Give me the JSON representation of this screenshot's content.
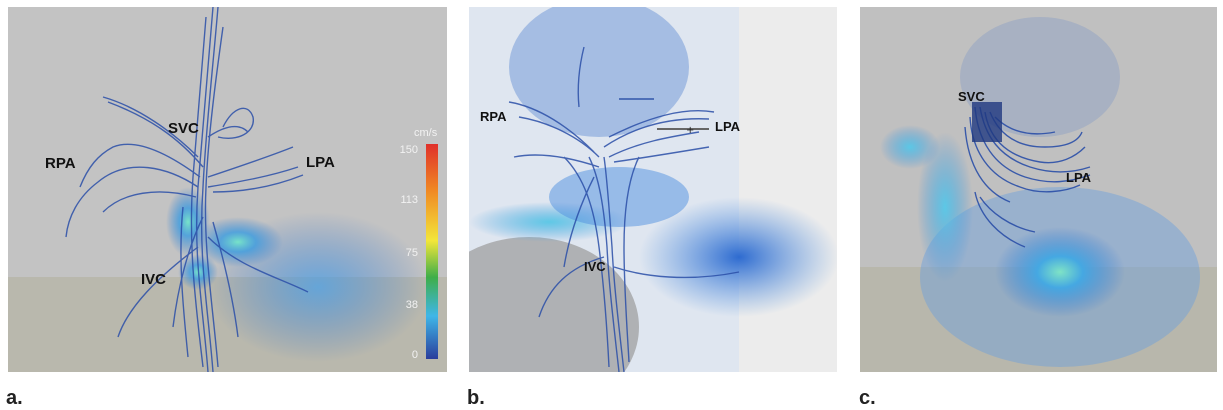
{
  "panels": [
    {
      "letter": "a.",
      "labels": {
        "svc": "SVC",
        "rpa": "RPA",
        "lpa": "LPA",
        "ivc": "IVC"
      },
      "colorbar": {
        "unit": "cm/s",
        "ticks": [
          "150",
          "113",
          "75",
          "38",
          "0"
        ],
        "colors": [
          "#e0302a",
          "#f08a24",
          "#f3e63a",
          "#3fae49",
          "#3fb6e8",
          "#2a3d9c"
        ]
      }
    },
    {
      "letter": "b.",
      "labels": {
        "rpa": "RPA",
        "lpa": "LPA",
        "ivc": "IVC"
      }
    },
    {
      "letter": "c.",
      "labels": {
        "svc": "SVC",
        "lpa": "LPA"
      }
    }
  ],
  "colors": {
    "streamline": "#2b4fa8",
    "flow_fast": "#66e0c8",
    "flow": "#3a8fd6",
    "background": "#bdbdbd"
  }
}
